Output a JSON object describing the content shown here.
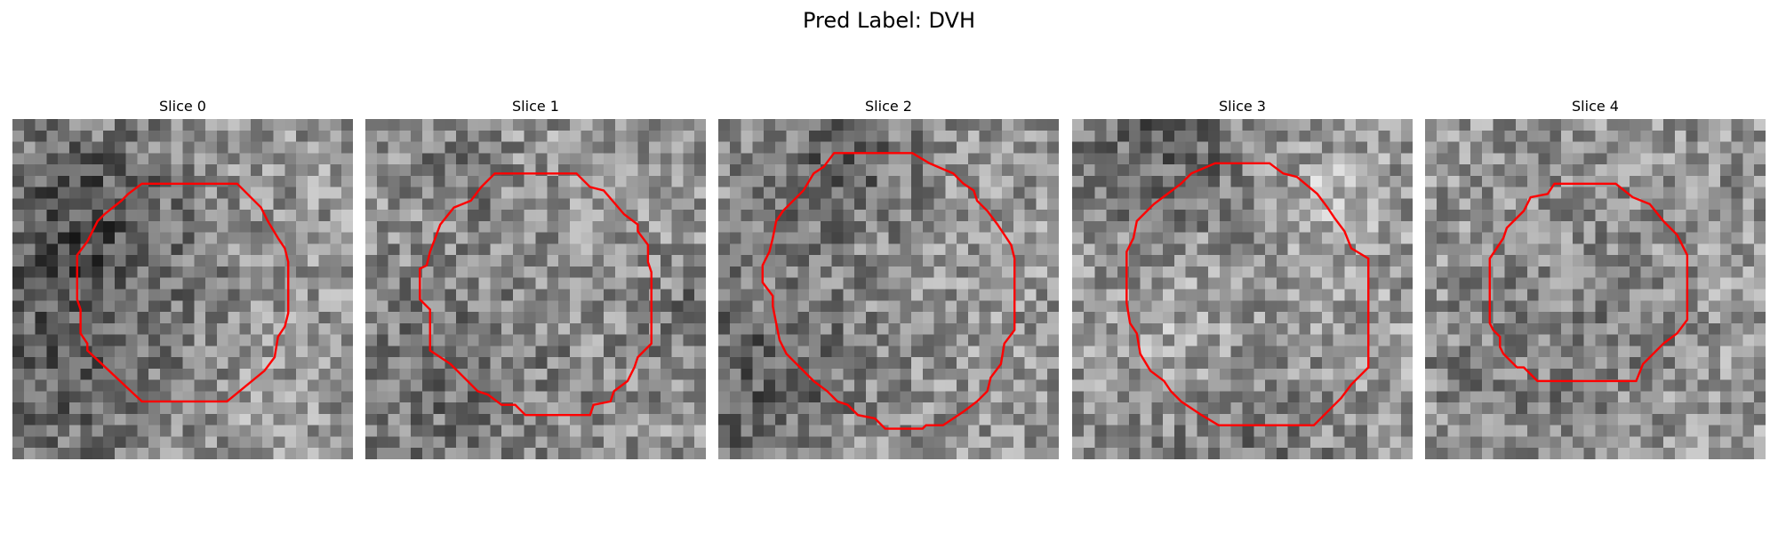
{
  "figure": {
    "title": "Pred Label: DVH"
  },
  "panels": [
    {
      "title": "Slice 0",
      "contour_color": "#ff0000",
      "image": "grayscale-noise-patch",
      "seed": 11,
      "contour": [
        [
          0.38,
          0.19
        ],
        [
          0.66,
          0.19
        ],
        [
          0.73,
          0.26
        ],
        [
          0.75,
          0.3
        ],
        [
          0.78,
          0.35
        ],
        [
          0.8,
          0.38
        ],
        [
          0.81,
          0.42
        ],
        [
          0.81,
          0.57
        ],
        [
          0.8,
          0.61
        ],
        [
          0.78,
          0.64
        ],
        [
          0.77,
          0.7
        ],
        [
          0.74,
          0.74
        ],
        [
          0.63,
          0.83
        ],
        [
          0.38,
          0.83
        ],
        [
          0.22,
          0.68
        ],
        [
          0.22,
          0.66
        ],
        [
          0.2,
          0.63
        ],
        [
          0.2,
          0.56
        ],
        [
          0.19,
          0.53
        ],
        [
          0.19,
          0.4
        ],
        [
          0.22,
          0.36
        ],
        [
          0.23,
          0.34
        ],
        [
          0.25,
          0.3
        ],
        [
          0.27,
          0.28
        ],
        [
          0.32,
          0.24
        ],
        [
          0.34,
          0.22
        ]
      ]
    },
    {
      "title": "Slice 1",
      "contour_color": "#ff0000",
      "image": "grayscale-noise-patch",
      "seed": 27,
      "contour": [
        [
          0.38,
          0.16
        ],
        [
          0.62,
          0.16
        ],
        [
          0.66,
          0.2
        ],
        [
          0.7,
          0.21
        ],
        [
          0.76,
          0.28
        ],
        [
          0.8,
          0.31
        ],
        [
          0.8,
          0.33
        ],
        [
          0.83,
          0.37
        ],
        [
          0.83,
          0.42
        ],
        [
          0.84,
          0.45
        ],
        [
          0.84,
          0.66
        ],
        [
          0.8,
          0.7
        ],
        [
          0.79,
          0.73
        ],
        [
          0.77,
          0.77
        ],
        [
          0.73,
          0.8
        ],
        [
          0.72,
          0.83
        ],
        [
          0.67,
          0.84
        ],
        [
          0.66,
          0.87
        ],
        [
          0.47,
          0.87
        ],
        [
          0.44,
          0.84
        ],
        [
          0.4,
          0.84
        ],
        [
          0.36,
          0.81
        ],
        [
          0.33,
          0.8
        ],
        [
          0.3,
          0.77
        ],
        [
          0.25,
          0.72
        ],
        [
          0.19,
          0.68
        ],
        [
          0.19,
          0.56
        ],
        [
          0.16,
          0.53
        ],
        [
          0.16,
          0.44
        ],
        [
          0.18,
          0.43
        ],
        [
          0.19,
          0.39
        ],
        [
          0.22,
          0.31
        ],
        [
          0.26,
          0.26
        ],
        [
          0.31,
          0.24
        ],
        [
          0.34,
          0.2
        ]
      ]
    },
    {
      "title": "Slice 2",
      "contour_color": "#ff0000",
      "image": "grayscale-noise-patch",
      "seed": 43,
      "contour": [
        [
          0.34,
          0.1
        ],
        [
          0.57,
          0.1
        ],
        [
          0.62,
          0.13
        ],
        [
          0.69,
          0.16
        ],
        [
          0.72,
          0.19
        ],
        [
          0.75,
          0.21
        ],
        [
          0.76,
          0.24
        ],
        [
          0.79,
          0.27
        ],
        [
          0.82,
          0.31
        ],
        [
          0.86,
          0.37
        ],
        [
          0.87,
          0.41
        ],
        [
          0.87,
          0.62
        ],
        [
          0.84,
          0.66
        ],
        [
          0.83,
          0.72
        ],
        [
          0.8,
          0.76
        ],
        [
          0.79,
          0.8
        ],
        [
          0.76,
          0.83
        ],
        [
          0.72,
          0.86
        ],
        [
          0.66,
          0.9
        ],
        [
          0.61,
          0.9
        ],
        [
          0.6,
          0.91
        ],
        [
          0.49,
          0.91
        ],
        [
          0.46,
          0.88
        ],
        [
          0.41,
          0.87
        ],
        [
          0.38,
          0.84
        ],
        [
          0.35,
          0.83
        ],
        [
          0.32,
          0.8
        ],
        [
          0.28,
          0.77
        ],
        [
          0.24,
          0.73
        ],
        [
          0.2,
          0.69
        ],
        [
          0.18,
          0.65
        ],
        [
          0.17,
          0.6
        ],
        [
          0.16,
          0.55
        ],
        [
          0.16,
          0.52
        ],
        [
          0.13,
          0.48
        ],
        [
          0.13,
          0.43
        ],
        [
          0.15,
          0.39
        ],
        [
          0.16,
          0.35
        ],
        [
          0.17,
          0.3
        ],
        [
          0.19,
          0.27
        ],
        [
          0.25,
          0.21
        ],
        [
          0.28,
          0.16
        ],
        [
          0.31,
          0.14
        ]
      ]
    },
    {
      "title": "Slice 3",
      "contour_color": "#ff0000",
      "image": "grayscale-noise-patch",
      "seed": 59,
      "contour": [
        [
          0.42,
          0.13
        ],
        [
          0.58,
          0.13
        ],
        [
          0.62,
          0.16
        ],
        [
          0.66,
          0.17
        ],
        [
          0.72,
          0.22
        ],
        [
          0.75,
          0.26
        ],
        [
          0.77,
          0.29
        ],
        [
          0.8,
          0.33
        ],
        [
          0.82,
          0.38
        ],
        [
          0.87,
          0.41
        ],
        [
          0.87,
          0.73
        ],
        [
          0.82,
          0.78
        ],
        [
          0.79,
          0.82
        ],
        [
          0.76,
          0.85
        ],
        [
          0.71,
          0.9
        ],
        [
          0.43,
          0.9
        ],
        [
          0.38,
          0.87
        ],
        [
          0.32,
          0.83
        ],
        [
          0.29,
          0.8
        ],
        [
          0.27,
          0.77
        ],
        [
          0.23,
          0.74
        ],
        [
          0.2,
          0.69
        ],
        [
          0.19,
          0.63
        ],
        [
          0.17,
          0.6
        ],
        [
          0.16,
          0.54
        ],
        [
          0.16,
          0.39
        ],
        [
          0.18,
          0.35
        ],
        [
          0.19,
          0.3
        ],
        [
          0.24,
          0.25
        ],
        [
          0.28,
          0.22
        ],
        [
          0.32,
          0.19
        ],
        [
          0.35,
          0.16
        ]
      ]
    },
    {
      "title": "Slice 4",
      "contour_color": "#ff0000",
      "image": "grayscale-noise-patch",
      "seed": 71,
      "contour": [
        [
          0.38,
          0.19
        ],
        [
          0.56,
          0.19
        ],
        [
          0.61,
          0.23
        ],
        [
          0.66,
          0.25
        ],
        [
          0.7,
          0.3
        ],
        [
          0.74,
          0.34
        ],
        [
          0.77,
          0.4
        ],
        [
          0.77,
          0.59
        ],
        [
          0.74,
          0.63
        ],
        [
          0.7,
          0.66
        ],
        [
          0.66,
          0.7
        ],
        [
          0.64,
          0.72
        ],
        [
          0.62,
          0.77
        ],
        [
          0.33,
          0.77
        ],
        [
          0.29,
          0.73
        ],
        [
          0.27,
          0.73
        ],
        [
          0.23,
          0.69
        ],
        [
          0.22,
          0.67
        ],
        [
          0.22,
          0.64
        ],
        [
          0.2,
          0.62
        ],
        [
          0.19,
          0.6
        ],
        [
          0.19,
          0.41
        ],
        [
          0.21,
          0.38
        ],
        [
          0.23,
          0.35
        ],
        [
          0.24,
          0.32
        ],
        [
          0.26,
          0.3
        ],
        [
          0.29,
          0.27
        ],
        [
          0.31,
          0.23
        ],
        [
          0.36,
          0.22
        ]
      ]
    }
  ]
}
